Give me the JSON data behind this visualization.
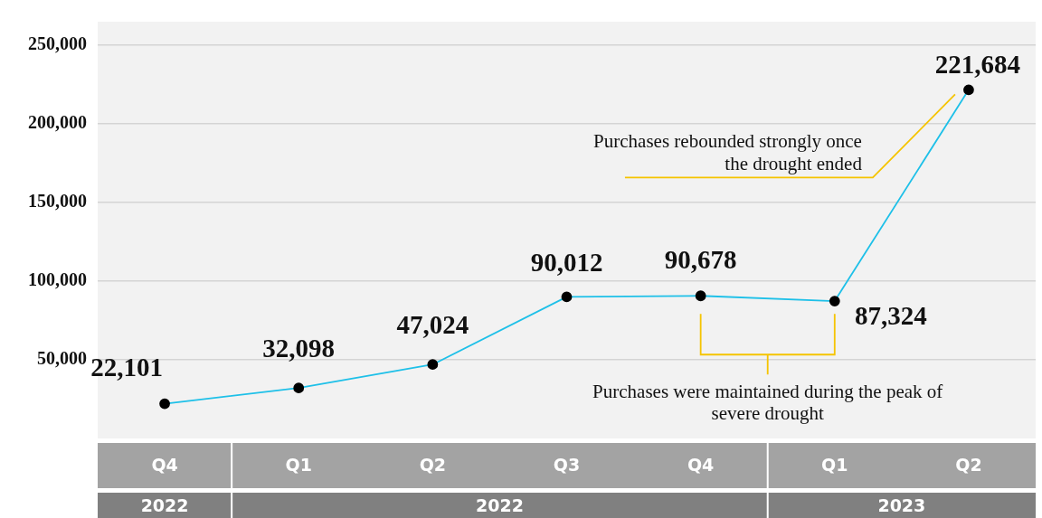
{
  "chart_data": {
    "type": "line",
    "categories": [
      "Q4",
      "Q1",
      "Q2",
      "Q3",
      "Q4",
      "Q1",
      "Q2"
    ],
    "series": [
      {
        "color": "#1ec0e8",
        "values": [
          22101,
          32098,
          47024,
          90012,
          90678,
          87324,
          221684
        ],
        "value_labels": [
          "22,101",
          "32,098",
          "47,024",
          "90,012",
          "90,678",
          "87,324",
          "221,684"
        ]
      }
    ],
    "ylim": [
      0,
      265000
    ],
    "yticks": [
      {
        "value": 50000,
        "label": "50,000"
      },
      {
        "value": 100000,
        "label": "100,000"
      },
      {
        "value": 150000,
        "label": "150,000"
      },
      {
        "value": 200000,
        "label": "200,000"
      },
      {
        "value": 250000,
        "label": "250,000"
      }
    ],
    "grid": "y",
    "marker": "circle",
    "line_style": "solid",
    "legend": false,
    "annotations": [
      "Purchases rebounded strongly once the drought ended",
      "Purchases were maintained during the peak of severe drought",
      "2022",
      "2022",
      "2023"
    ]
  }
}
